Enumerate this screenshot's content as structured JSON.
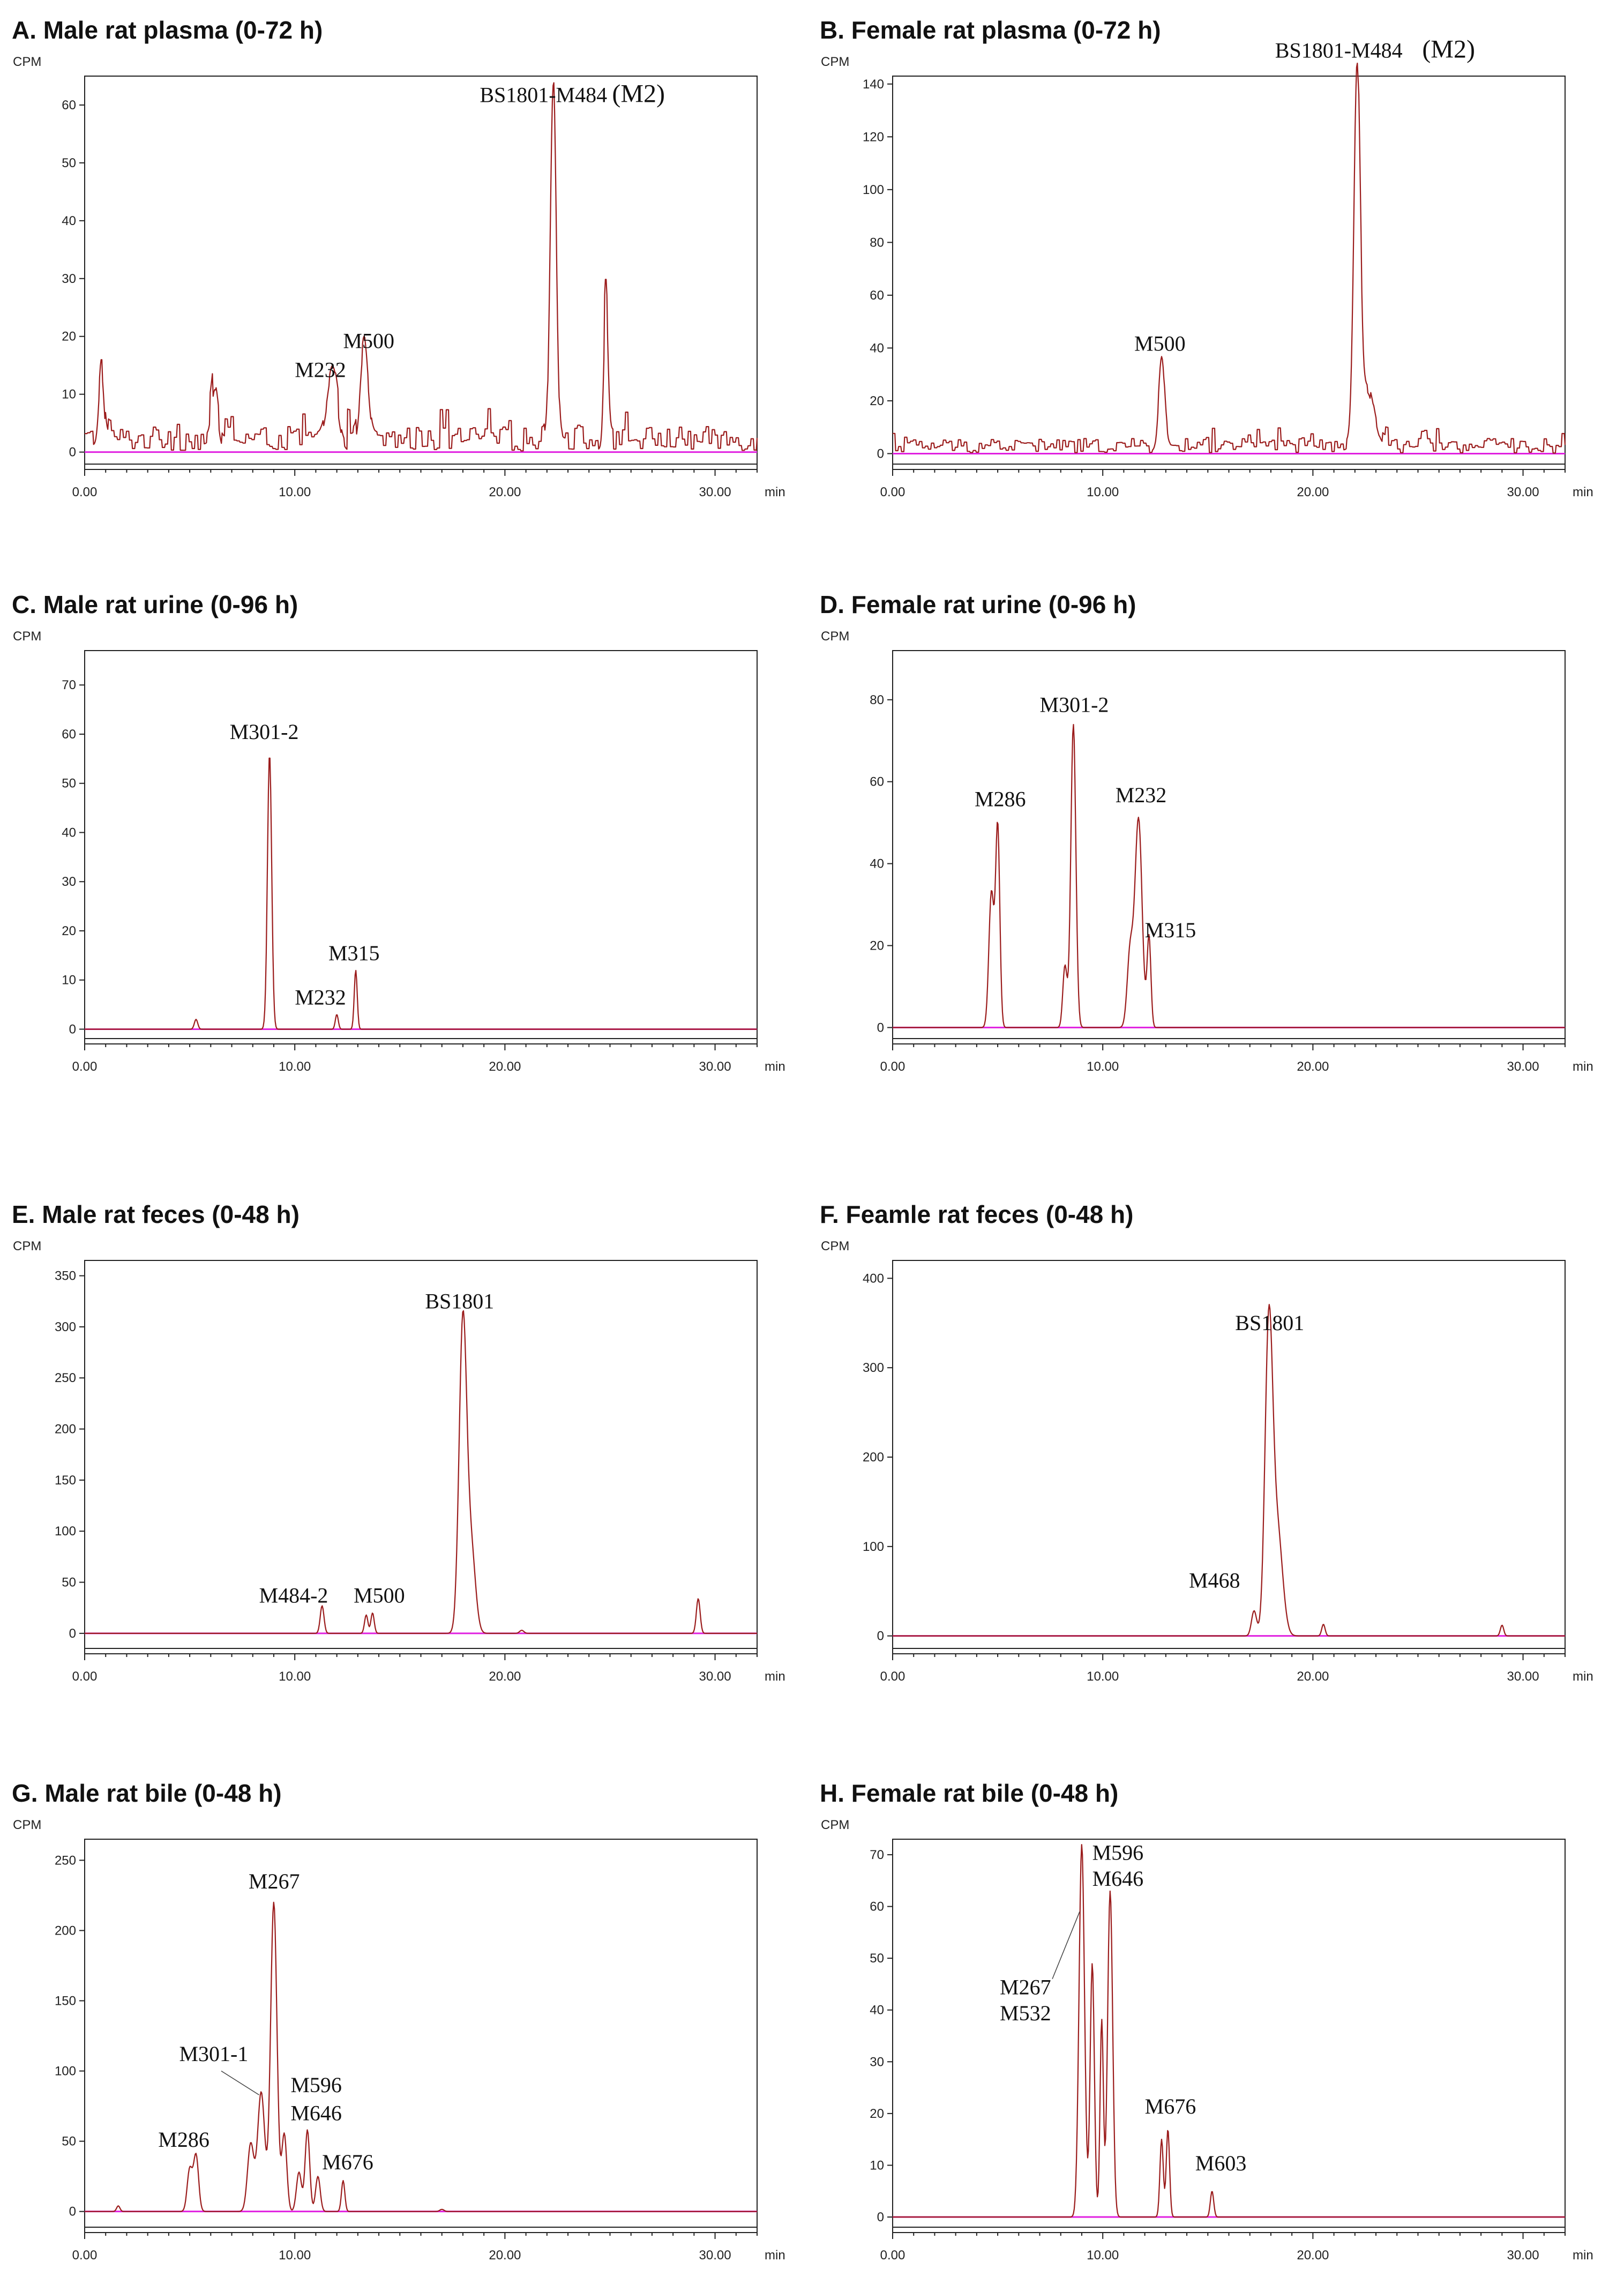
{
  "chart_data": [
    {
      "id": "A",
      "type": "line",
      "title": "A. Male rat plasma (0-72 h)",
      "ylabel": "CPM",
      "xlabel": "min",
      "xlim": [
        0,
        32
      ],
      "ylim": [
        -3,
        65
      ],
      "yticks": [
        0,
        10,
        20,
        30,
        40,
        50,
        60
      ],
      "xticks": [
        "0.00",
        "10.00",
        "20.00",
        "30.00"
      ],
      "baseline": "noisy",
      "noise": 4.2,
      "peaks": [
        {
          "x": 0.8,
          "y": 13,
          "w": 0.12
        },
        {
          "x": 6.2,
          "y": 8,
          "w": 0.15
        },
        {
          "x": 11.8,
          "y": 11,
          "w": 0.25
        },
        {
          "x": 13.3,
          "y": 16,
          "w": 0.18
        },
        {
          "x": 22.3,
          "y": 63,
          "w": 0.14
        },
        {
          "x": 24.8,
          "y": 23,
          "w": 0.1
        }
      ],
      "labels": [
        {
          "text": "BS1801-M484",
          "x": 18.8,
          "y": 60.5,
          "tail": "(M2)",
          "tail_x": 25.1
        },
        {
          "text": "M232",
          "x": 10.0,
          "y": 13
        },
        {
          "text": "M500",
          "x": 12.3,
          "y": 18
        }
      ]
    },
    {
      "id": "B",
      "type": "line",
      "title": "B. Female rat plasma (0-72 h)",
      "ylabel": "CPM",
      "xlabel": "min",
      "xlim": [
        0,
        32
      ],
      "ylim": [
        -6,
        143
      ],
      "yticks": [
        0,
        20,
        40,
        60,
        80,
        100,
        120,
        140
      ],
      "xticks": [
        "0.00",
        "10.00",
        "20.00",
        "30.00"
      ],
      "baseline": "noisy",
      "noise": 5.5,
      "peaks": [
        {
          "x": 12.8,
          "y": 33,
          "w": 0.14
        },
        {
          "x": 22.1,
          "y": 140,
          "w": 0.15
        },
        {
          "x": 22.6,
          "y": 22,
          "w": 0.3
        }
      ],
      "labels": [
        {
          "text": "BS1801-M484",
          "x": 18.2,
          "y": 150,
          "tail": "(M2)",
          "tail_x": 25.2
        },
        {
          "text": "M500",
          "x": 11.5,
          "y": 39
        }
      ]
    },
    {
      "id": "C",
      "type": "line",
      "title": "C. Male rat urine (0-96 h)",
      "ylabel": "CPM",
      "xlabel": "min",
      "xlim": [
        0,
        32
      ],
      "ylim": [
        -3,
        77
      ],
      "yticks": [
        0,
        10,
        20,
        30,
        40,
        50,
        60,
        70
      ],
      "xticks": [
        "0.00",
        "10.00",
        "20.00",
        "30.00"
      ],
      "baseline": "flat",
      "peaks": [
        {
          "x": 5.3,
          "y": 2,
          "w": 0.08
        },
        {
          "x": 8.8,
          "y": 56,
          "w": 0.1
        },
        {
          "x": 12.0,
          "y": 3,
          "w": 0.07
        },
        {
          "x": 12.9,
          "y": 12,
          "w": 0.07
        }
      ],
      "labels": [
        {
          "text": "M301-2",
          "x": 6.9,
          "y": 59
        },
        {
          "text": "M232",
          "x": 10.0,
          "y": 5
        },
        {
          "text": "M315",
          "x": 11.6,
          "y": 14
        }
      ]
    },
    {
      "id": "D",
      "type": "line",
      "title": "D. Female rat urine (0-96 h)",
      "ylabel": "CPM",
      "xlabel": "min",
      "xlim": [
        0,
        32
      ],
      "ylim": [
        -4,
        92
      ],
      "yticks": [
        0,
        20,
        40,
        60,
        80
      ],
      "xticks": [
        "0.00",
        "10.00",
        "20.00",
        "30.00"
      ],
      "baseline": "flat",
      "peaks": [
        {
          "x": 4.7,
          "y": 33,
          "w": 0.12
        },
        {
          "x": 5.0,
          "y": 49,
          "w": 0.1
        },
        {
          "x": 8.2,
          "y": 15,
          "w": 0.1
        },
        {
          "x": 8.6,
          "y": 74,
          "w": 0.12
        },
        {
          "x": 11.3,
          "y": 18,
          "w": 0.14
        },
        {
          "x": 11.7,
          "y": 51,
          "w": 0.17
        },
        {
          "x": 12.2,
          "y": 22,
          "w": 0.09
        }
      ],
      "labels": [
        {
          "text": "M286",
          "x": 3.9,
          "y": 54
        },
        {
          "text": "M301-2",
          "x": 7.0,
          "y": 77
        },
        {
          "text": "M232",
          "x": 10.6,
          "y": 55
        },
        {
          "text": "M315",
          "x": 12.0,
          "y": 22
        }
      ]
    },
    {
      "id": "E",
      "type": "line",
      "title": "E. Male rat feces (0-48 h)",
      "ylabel": "CPM",
      "xlabel": "min",
      "xlim": [
        0,
        32
      ],
      "ylim": [
        -20,
        365
      ],
      "yticks": [
        0,
        50,
        100,
        150,
        200,
        250,
        300,
        350
      ],
      "xticks": [
        "0.00",
        "10.00",
        "20.00",
        "30.00"
      ],
      "baseline": "flat",
      "peaks": [
        {
          "x": 11.3,
          "y": 27,
          "w": 0.09
        },
        {
          "x": 13.4,
          "y": 18,
          "w": 0.08
        },
        {
          "x": 13.7,
          "y": 20,
          "w": 0.08
        },
        {
          "x": 18.0,
          "y": 305,
          "w": 0.18
        },
        {
          "x": 18.4,
          "y": 80,
          "w": 0.2
        },
        {
          "x": 20.8,
          "y": 3,
          "w": 0.1
        },
        {
          "x": 29.2,
          "y": 34,
          "w": 0.09
        }
      ],
      "labels": [
        {
          "text": "BS1801",
          "x": 16.2,
          "y": 318
        },
        {
          "text": "M484-2",
          "x": 8.3,
          "y": 30
        },
        {
          "text": "M500",
          "x": 12.8,
          "y": 30
        }
      ]
    },
    {
      "id": "F",
      "type": "line",
      "title": "F. Feamle rat feces (0-48 h)",
      "ylabel": "CPM",
      "xlabel": "min",
      "xlim": [
        0,
        32
      ],
      "ylim": [
        -20,
        420
      ],
      "yticks": [
        0,
        100,
        200,
        300,
        400
      ],
      "xticks": [
        "0.00",
        "10.00",
        "20.00",
        "30.00"
      ],
      "baseline": "flat",
      "peaks": [
        {
          "x": 17.2,
          "y": 28,
          "w": 0.12
        },
        {
          "x": 17.9,
          "y": 335,
          "w": 0.18
        },
        {
          "x": 18.3,
          "y": 120,
          "w": 0.25
        },
        {
          "x": 20.5,
          "y": 13,
          "w": 0.08
        },
        {
          "x": 29.0,
          "y": 12,
          "w": 0.08
        }
      ],
      "labels": [
        {
          "text": "BS1801",
          "x": 16.3,
          "y": 342
        },
        {
          "text": "M468",
          "x": 14.1,
          "y": 54
        }
      ]
    },
    {
      "id": "G",
      "type": "line",
      "title": "G. Male rat bile (0-48 h)",
      "ylabel": "CPM",
      "xlabel": "min",
      "xlim": [
        0,
        32
      ],
      "ylim": [
        -15,
        265
      ],
      "yticks": [
        0,
        50,
        100,
        150,
        200,
        250
      ],
      "xticks": [
        "0.00",
        "10.00",
        "20.00",
        "30.00"
      ],
      "baseline": "flat",
      "peaks": [
        {
          "x": 1.6,
          "y": 4,
          "w": 0.08
        },
        {
          "x": 5.0,
          "y": 30,
          "w": 0.12
        },
        {
          "x": 5.3,
          "y": 40,
          "w": 0.12
        },
        {
          "x": 7.9,
          "y": 48,
          "w": 0.15
        },
        {
          "x": 8.4,
          "y": 85,
          "w": 0.17
        },
        {
          "x": 9.0,
          "y": 220,
          "w": 0.15
        },
        {
          "x": 9.5,
          "y": 55,
          "w": 0.12
        },
        {
          "x": 10.2,
          "y": 28,
          "w": 0.12
        },
        {
          "x": 10.6,
          "y": 58,
          "w": 0.11
        },
        {
          "x": 11.1,
          "y": 25,
          "w": 0.11
        },
        {
          "x": 12.3,
          "y": 22,
          "w": 0.08
        },
        {
          "x": 17.0,
          "y": 1.5,
          "w": 0.1
        }
      ],
      "labels": [
        {
          "text": "M267",
          "x": 7.8,
          "y": 230
        },
        {
          "text": "M301-1",
          "x": 4.5,
          "y": 107
        },
        {
          "text": "M596",
          "x": 9.8,
          "y": 85
        },
        {
          "text": "M646",
          "x": 9.8,
          "y": 65
        },
        {
          "text": "M676",
          "x": 11.3,
          "y": 30
        },
        {
          "text": "M286",
          "x": 3.5,
          "y": 46
        }
      ],
      "leaders": [
        {
          "from": [
            6.5,
            100
          ],
          "to": [
            8.3,
            83
          ]
        }
      ]
    },
    {
      "id": "H",
      "type": "line",
      "title": "H. Female rat bile (0-48 h)",
      "ylabel": "CPM",
      "xlabel": "min",
      "xlim": [
        0,
        32
      ],
      "ylim": [
        -3,
        73
      ],
      "yticks": [
        0,
        10,
        20,
        30,
        40,
        50,
        60,
        70
      ],
      "xticks": [
        "0.00",
        "10.00",
        "20.00",
        "30.00"
      ],
      "baseline": "flat",
      "peaks": [
        {
          "x": 9.0,
          "y": 72,
          "w": 0.13
        },
        {
          "x": 9.5,
          "y": 49,
          "w": 0.1
        },
        {
          "x": 9.95,
          "y": 38,
          "w": 0.08
        },
        {
          "x": 10.35,
          "y": 63,
          "w": 0.12
        },
        {
          "x": 12.8,
          "y": 15,
          "w": 0.08
        },
        {
          "x": 13.1,
          "y": 17,
          "w": 0.08
        },
        {
          "x": 15.2,
          "y": 5,
          "w": 0.08
        }
      ],
      "labels": [
        {
          "text": "M596",
          "x": 9.5,
          "y": 69
        },
        {
          "text": "M646",
          "x": 9.5,
          "y": 64
        },
        {
          "text": "M267",
          "x": 5.1,
          "y": 43
        },
        {
          "text": "M532",
          "x": 5.1,
          "y": 38
        },
        {
          "text": "M676",
          "x": 12.0,
          "y": 20
        },
        {
          "text": "M603",
          "x": 14.4,
          "y": 9
        }
      ],
      "leaders": [
        {
          "from": [
            7.6,
            46
          ],
          "to": [
            8.9,
            59
          ]
        }
      ]
    }
  ]
}
